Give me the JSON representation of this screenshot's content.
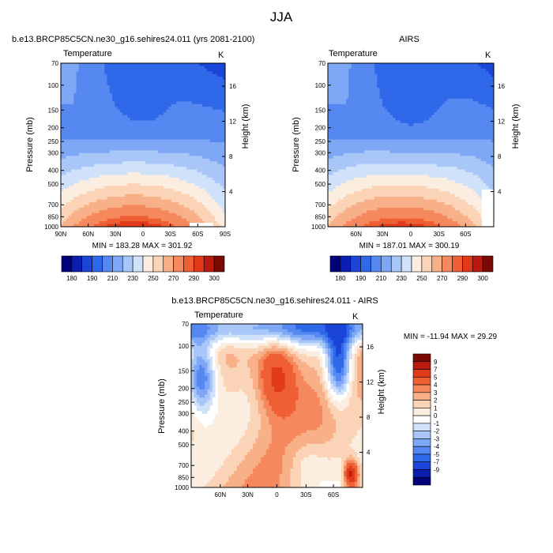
{
  "page_title": "JJA",
  "colors": {
    "temp_scale": [
      "#00007a",
      "#0a1fb0",
      "#1b44d8",
      "#2f68e8",
      "#5588f0",
      "#7ea8f5",
      "#a9c6f8",
      "#d0e2fa",
      "#fbeee0",
      "#fbd3b6",
      "#f8b088",
      "#f5885c",
      "#ef5f34",
      "#e03a1a",
      "#b81a0e",
      "#7a0a04"
    ],
    "diff_scale": [
      "#00007a",
      "#0a1fb0",
      "#1b44d8",
      "#2f68e8",
      "#5588f0",
      "#7ea8f5",
      "#a9c6f8",
      "#d0e2fa",
      "#ffffff",
      "#fbeee0",
      "#fbd3b6",
      "#f8b088",
      "#f5885c",
      "#ef5f34",
      "#e03a1a",
      "#b81a0e",
      "#7a0a04"
    ]
  },
  "chart_data": [
    {
      "type": "heatmap",
      "title": "b.e13.BRCP85C5CN.ne30_g16.sehires24.011 (yrs 2081-2100)",
      "left_label": "Temperature",
      "right_label": "K",
      "ylabel": "Pressure (mb)",
      "ylabel_right": "Height (km)",
      "x_ticks": [
        "90N",
        "60N",
        "30N",
        "0",
        "30S",
        "60S",
        "90S"
      ],
      "y_ticks": [
        "70",
        "100",
        "150",
        "200",
        "250",
        "300",
        "400",
        "500",
        "700",
        "850",
        "1000"
      ],
      "y2_ticks": [
        "16",
        "12",
        "8",
        "4"
      ],
      "stats": "MIN = 183.28  MAX = 301.92",
      "colorbar_labels": [
        "180",
        "190",
        "210",
        "230",
        "250",
        "270",
        "290",
        "300"
      ]
    },
    {
      "type": "heatmap",
      "title": "AIRS",
      "left_label": "Temperature",
      "right_label": "K",
      "ylabel": "Pressure (mb)",
      "ylabel_right": "Height (km)",
      "x_ticks": [
        "60N",
        "30N",
        "0",
        "30S",
        "60S"
      ],
      "y_ticks": [
        "70",
        "100",
        "150",
        "200",
        "250",
        "300",
        "400",
        "500",
        "700",
        "850",
        "1000"
      ],
      "y2_ticks": [
        "16",
        "12",
        "8",
        "4"
      ],
      "stats": "MIN = 187.01  MAX = 300.19",
      "colorbar_labels": [
        "180",
        "190",
        "210",
        "230",
        "250",
        "270",
        "290",
        "300"
      ]
    },
    {
      "type": "heatmap",
      "title": "b.e13.BRCP85C5CN.ne30_g16.sehires24.011 - AIRS",
      "left_label": "Temperature",
      "right_label": "K",
      "ylabel": "Pressure (mb)",
      "ylabel_right": "Height (km)",
      "x_ticks": [
        "60N",
        "30N",
        "0",
        "30S",
        "60S"
      ],
      "y_ticks": [
        "70",
        "100",
        "150",
        "200",
        "250",
        "300",
        "400",
        "500",
        "700",
        "850",
        "1000"
      ],
      "y2_ticks": [
        "16",
        "12",
        "8",
        "4"
      ],
      "stats": "MIN = -11.94  MAX =  29.29",
      "colorbar_labels": [
        "9",
        "7",
        "5",
        "4",
        "3",
        "2",
        "1",
        "0",
        "-1",
        "-2",
        "-3",
        "-4",
        "-5",
        "-7",
        "-9"
      ]
    }
  ]
}
